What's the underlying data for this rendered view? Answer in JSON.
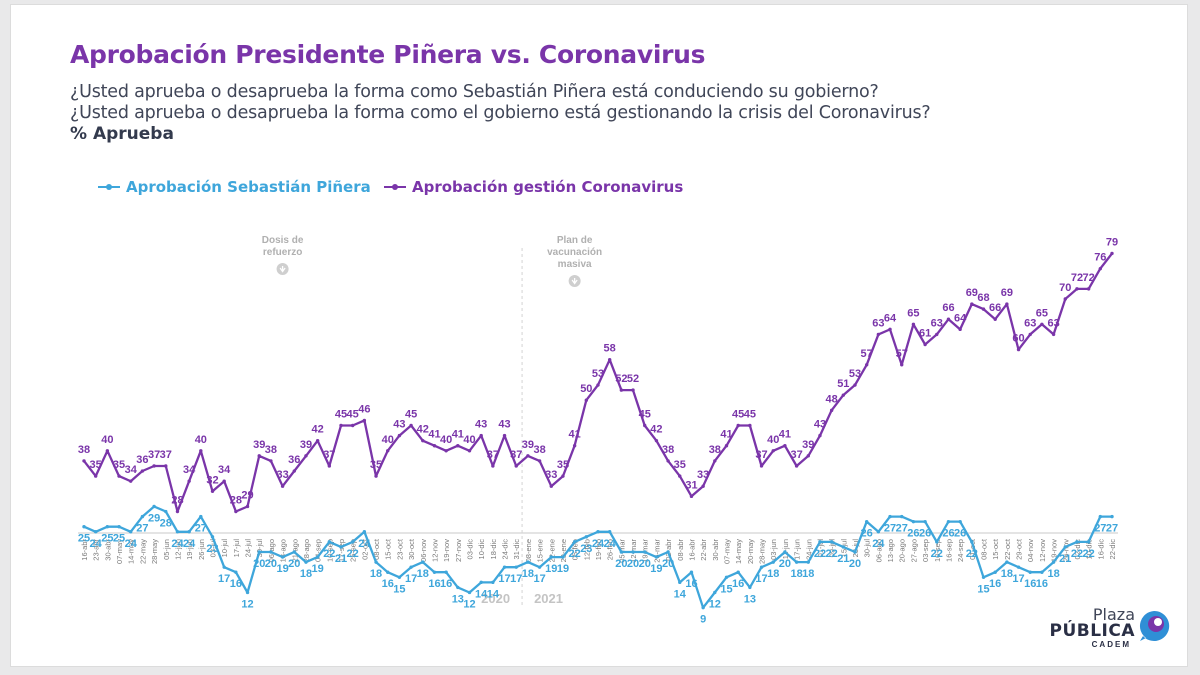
{
  "title": "Aprobación Presidente Piñera vs. Coronavirus",
  "question_1": "¿Usted aprueba o desaprueba la forma como Sebastián Piñera está conduciendo su gobierno?",
  "question_2": "¿Usted aprueba o desaprueba la forma como el gobierno está gestionando la crisis del Coronavirus?",
  "unit_label": "% Aprueba",
  "logo": {
    "line1": "Plaza",
    "line2": "PÚBLICA",
    "line3": "CADEM"
  },
  "colors": {
    "pinera": "#3ea6db",
    "coronavirus": "#7a35a9",
    "logo_blue": "#2f8fd6",
    "logo_purple": "#7a35a9"
  },
  "chart_data": {
    "type": "line",
    "x": [
      "16-abr",
      "23-abr",
      "30-abr",
      "07-may",
      "14-may",
      "22-may",
      "28-may",
      "05-jun",
      "12-jun",
      "19-jun",
      "26-jun",
      "03-jul",
      "10-jul",
      "17-jul",
      "24-jul",
      "30-jul",
      "06-ago",
      "13-ago",
      "21-ago",
      "28-ago",
      "04-sep",
      "10-sep",
      "17-sep",
      "25-sep",
      "02-oct",
      "08-oct",
      "15-oct",
      "23-oct",
      "30-oct",
      "06-nov",
      "12-nov",
      "19-nov",
      "27-nov",
      "03-dic",
      "10-dic",
      "18-dic",
      "24-dic",
      "31-dic",
      "08-ene",
      "15-ene",
      "22-ene",
      "29-ene",
      "05-feb",
      "12-feb",
      "19-feb",
      "26-feb",
      "05-mar",
      "12-mar",
      "19-mar",
      "26-mar",
      "02-abr",
      "08-abr",
      "16-abr",
      "22-abr",
      "30-abr",
      "07-may",
      "14-may",
      "20-may",
      "28-may",
      "03-jun",
      "11-jun",
      "17-jun",
      "24-jun",
      "01-jul",
      "09-jul",
      "15-jul",
      "23-jul",
      "30-jul",
      "06-ago",
      "13-ago",
      "20-ago",
      "27-ago",
      "03-sep",
      "10-sep",
      "16-sep",
      "24-sep",
      "01-oct",
      "08-oct",
      "15-oct",
      "22-oct",
      "29-oct",
      "04-nov",
      "12-nov",
      "19-nov",
      "26-nov",
      "02-dic",
      "10-dic",
      "16-dic",
      "22-dic"
    ],
    "series": [
      {
        "name": "Aprobación Sebastián Piñera",
        "values": [
          25,
          24,
          25,
          25,
          24,
          27,
          29,
          28,
          24,
          24,
          27,
          23,
          17,
          16,
          12,
          20,
          20,
          19,
          20,
          18,
          19,
          22,
          21,
          22,
          24,
          18,
          16,
          15,
          17,
          18,
          16,
          16,
          13,
          12,
          14,
          14,
          17,
          17,
          18,
          17,
          19,
          19,
          22,
          23,
          24,
          24,
          20,
          20,
          20,
          19,
          20,
          14,
          16,
          9,
          12,
          15,
          16,
          13,
          17,
          18,
          20,
          18,
          18,
          22,
          22,
          21,
          20,
          26,
          24,
          27,
          27,
          26,
          26,
          22,
          26,
          26,
          22,
          15,
          16,
          18,
          17,
          16,
          16,
          18,
          21,
          22,
          22,
          27,
          27
        ]
      },
      {
        "name": "Aprobación gestión Coronavirus",
        "values": [
          38,
          35,
          40,
          35,
          34,
          36,
          37,
          37,
          28,
          34,
          40,
          32,
          34,
          28,
          29,
          39,
          38,
          33,
          36,
          39,
          42,
          37,
          45,
          45,
          46,
          35,
          40,
          43,
          45,
          42,
          41,
          40,
          41,
          40,
          43,
          37,
          43,
          37,
          39,
          38,
          33,
          35,
          41,
          50,
          53,
          58,
          52,
          52,
          45,
          42,
          38,
          35,
          31,
          33,
          38,
          41,
          45,
          45,
          37,
          40,
          41,
          37,
          39,
          43,
          48,
          51,
          53,
          57,
          63,
          64,
          57,
          65,
          61,
          63,
          66,
          64,
          69,
          68,
          66,
          69,
          60,
          63,
          65,
          63,
          70,
          72,
          72,
          76,
          79
        ]
      }
    ],
    "annotations": [
      {
        "text": "Plan de vacunación masiva",
        "x": "05-feb"
      },
      {
        "text": "Dosis de refuerzo",
        "x": "13-ago"
      }
    ],
    "year_labels": [
      "2020",
      "2021"
    ],
    "year_boundary": {
      "after": "31-dic",
      "before": "08-ene"
    },
    "ylim": [
      0,
      100
    ],
    "grid": false,
    "legend_position": "top-left"
  }
}
